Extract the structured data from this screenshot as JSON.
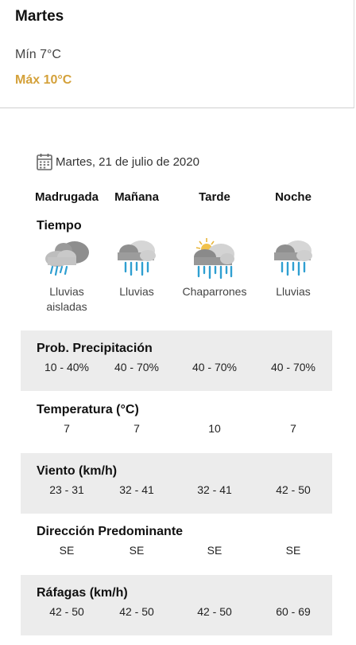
{
  "day": {
    "title": "Martes",
    "min": "Mín 7°C",
    "max": "Máx 10°C"
  },
  "date": "Martes, 21 de julio de 2020",
  "periods": [
    "Madrugada",
    "Mañana",
    "Tarde",
    "Noche"
  ],
  "tiempo": {
    "label": "Tiempo",
    "icons": [
      "light-rain-cloud-icon",
      "rain-cloud-icon",
      "sun-rain-cloud-icon",
      "rain-cloud-icon"
    ],
    "desc": [
      [
        "Lluvias",
        "aisladas"
      ],
      [
        "Lluvias"
      ],
      [
        "Chaparrones"
      ],
      [
        "Lluvias"
      ]
    ]
  },
  "rows": [
    {
      "title": "Prob. Precipitación",
      "values": [
        "10 - 40%",
        "40 - 70%",
        "40 - 70%",
        "40 - 70%"
      ]
    },
    {
      "title": "Temperatura (°C)",
      "values": [
        "7",
        "7",
        "10",
        "7"
      ]
    },
    {
      "title": "Viento (km/h)",
      "values": [
        "23 - 31",
        "32 - 41",
        "32 - 41",
        "42 - 50"
      ]
    },
    {
      "title": "Dirección Predominante",
      "values": [
        "SE",
        "SE",
        "SE",
        "SE"
      ]
    },
    {
      "title": "Ráfagas (km/h)",
      "values": [
        "42 - 50",
        "42 - 50",
        "42 - 50",
        "60 - 69"
      ]
    }
  ],
  "colors": {
    "max_temp": "#d4a13a",
    "band": "#ececec",
    "rain": "#2f9fd1"
  }
}
